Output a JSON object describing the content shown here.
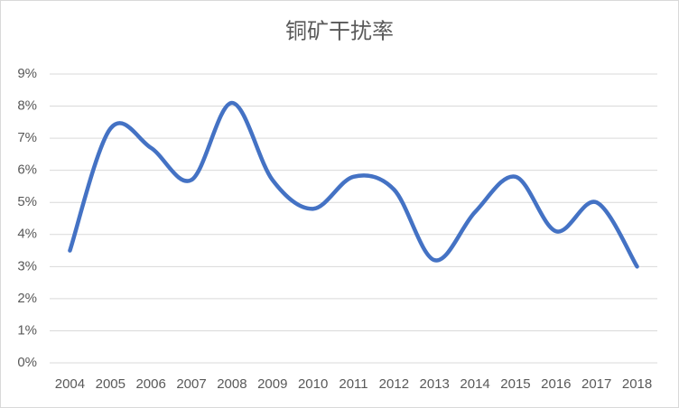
{
  "chart_data": {
    "type": "line",
    "title": "铜矿干扰率",
    "categories": [
      "2004",
      "2005",
      "2006",
      "2007",
      "2008",
      "2009",
      "2010",
      "2011",
      "2012",
      "2013",
      "2014",
      "2015",
      "2016",
      "2017",
      "2018"
    ],
    "values": [
      3.5,
      7.3,
      6.7,
      5.7,
      8.1,
      5.7,
      4.8,
      5.8,
      5.4,
      3.2,
      4.7,
      5.8,
      4.1,
      5.0,
      3.0
    ],
    "color": "#4472c4",
    "smooth": true,
    "grid": true,
    "ylim": [
      0,
      9
    ],
    "yticks": [
      {
        "value": 0,
        "label": "0%"
      },
      {
        "value": 1,
        "label": "1%"
      },
      {
        "value": 2,
        "label": "2%"
      },
      {
        "value": 3,
        "label": "3%"
      },
      {
        "value": 4,
        "label": "4%"
      },
      {
        "value": 5,
        "label": "5%"
      },
      {
        "value": 6,
        "label": "6%"
      },
      {
        "value": 7,
        "label": "7%"
      },
      {
        "value": 8,
        "label": "8%"
      },
      {
        "value": 9,
        "label": "9%"
      }
    ]
  }
}
